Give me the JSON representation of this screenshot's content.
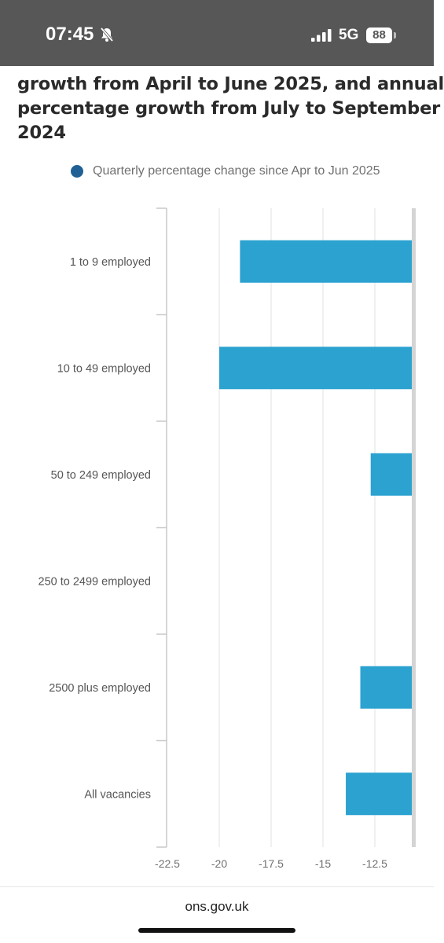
{
  "status_bar": {
    "time": "07:45",
    "network": "5G",
    "battery": "88",
    "icons": [
      "bell-muted-icon",
      "cellular-signal-icon",
      "battery-icon"
    ]
  },
  "title_lines": [
    "growth from April to June 2025, and annual",
    "percentage growth from July to September",
    "2024"
  ],
  "footer": {
    "url": "ons.gov.uk"
  },
  "colors": {
    "bar": "#2ba2d0",
    "legend_dot": "#206095",
    "grid": "#e0e0e0",
    "axis_line": "#c9c9c9"
  },
  "chart_data": {
    "type": "bar",
    "orientation": "horizontal",
    "categories": [
      "1 to 9 employed",
      "10 to 49 employed",
      "50 to 249 employed",
      "250 to 2499 employed",
      "2500 plus employed",
      "All vacancies"
    ],
    "series": [
      {
        "name": "Quarterly percentage change since Apr to Jun 2025",
        "values": [
          -19.0,
          -20.0,
          -12.7,
          null,
          -13.2,
          -13.9
        ]
      }
    ],
    "x_ticks": [
      "-22.5",
      "-20",
      "-17.5",
      "-15",
      "-12.5"
    ],
    "xlim": [
      -22.5,
      -10.5
    ],
    "legend_position": "top",
    "grid": true
  }
}
